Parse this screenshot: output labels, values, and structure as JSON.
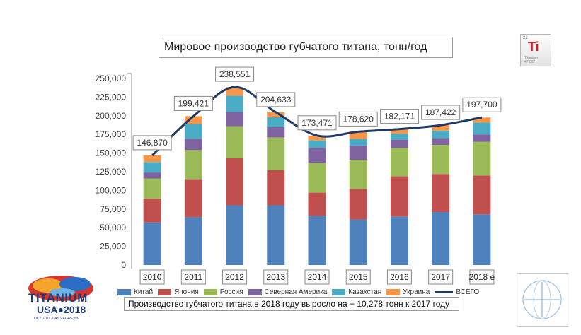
{
  "chart_data": {
    "type": "bar",
    "stacked": true,
    "title": "Мировое производство губчатого титана, тонн/год",
    "categories": [
      "2010",
      "2011",
      "2012",
      "2013",
      "2014",
      "2015",
      "2016",
      "2017",
      "2018 е"
    ],
    "ylim": [
      0,
      250000
    ],
    "yticks": [
      "0",
      "25,000",
      "50,000",
      "75,000",
      "100,000",
      "125,000",
      "150,000",
      "175,000",
      "200,000",
      "225,000",
      "250,000"
    ],
    "series": [
      {
        "name": "Китай",
        "color": "#4f81bd",
        "values": [
          57000,
          64000,
          80000,
          80000,
          66000,
          61000,
          65000,
          71000,
          68000
        ]
      },
      {
        "name": "Япония",
        "color": "#c0504d",
        "values": [
          32000,
          51000,
          63000,
          47000,
          31000,
          41000,
          54000,
          51000,
          52000
        ]
      },
      {
        "name": "Россия",
        "color": "#9bbb59",
        "values": [
          27000,
          39000,
          43000,
          44000,
          40000,
          39000,
          38000,
          39000,
          45000
        ]
      },
      {
        "name": "Северная Америка",
        "color": "#8064a2",
        "values": [
          8000,
          15000,
          19000,
          14000,
          20000,
          19000,
          11000,
          9000,
          10000
        ]
      },
      {
        "name": "Казахстан",
        "color": "#4bacc6",
        "values": [
          14000,
          20000,
          22000,
          13000,
          10000,
          9000,
          8000,
          10000,
          16000
        ]
      },
      {
        "name": "Украина",
        "color": "#f79646",
        "values": [
          8870,
          10421,
          11551,
          6633,
          6471,
          9620,
          6171,
          7422,
          6700
        ]
      }
    ],
    "total": {
      "name": "ВСЕГО",
      "color": "#1f3a66",
      "values": [
        146870,
        199421,
        238551,
        204633,
        173471,
        178620,
        182171,
        187422,
        197700
      ]
    },
    "data_labels": [
      "146,870",
      "199,421",
      "238,551",
      "204,633",
      "173,471",
      "178,620",
      "182,171",
      "187,422",
      "197,700"
    ]
  },
  "note": "Производство губчатого титана в 2018 году выросло на + 10,278 тонн к 2017 году",
  "logo": {
    "element_symbol": "Ti",
    "conference_word": "TITANIUM",
    "conference_usa": "USA",
    "conference_year": "2018",
    "conference_sub": "OCT 7-10 · LAS VEGAS, NV"
  }
}
